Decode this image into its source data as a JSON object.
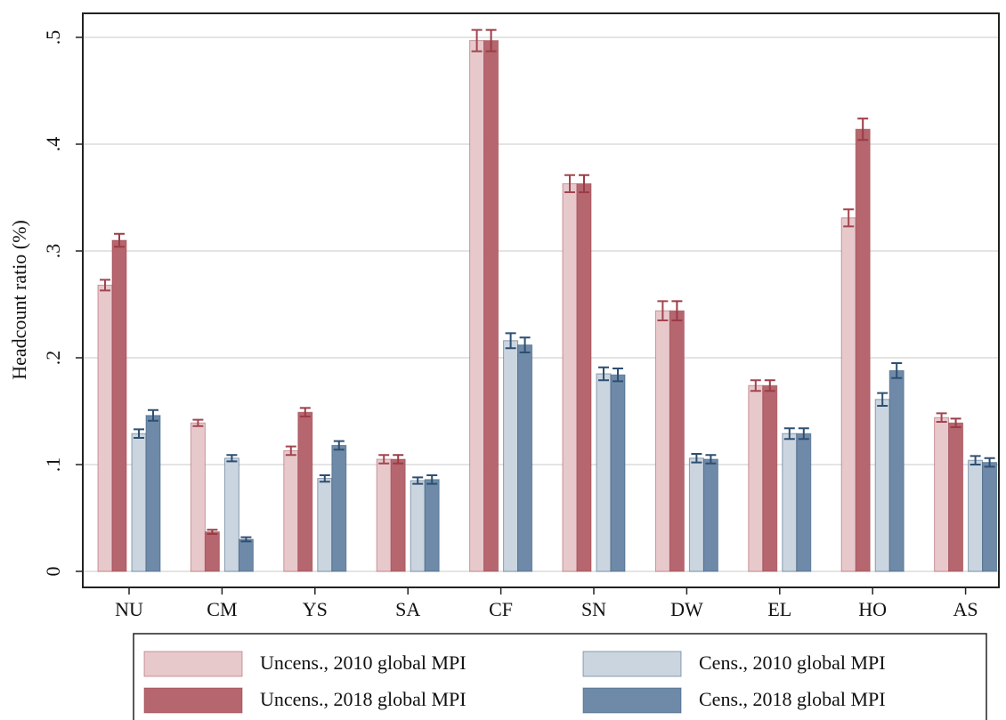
{
  "chart_data": {
    "type": "bar",
    "y_label": "Headcount ratio (%)",
    "categories": [
      "NU",
      "CM",
      "YS",
      "SA",
      "CF",
      "SN",
      "DW",
      "EL",
      "HO",
      "AS"
    ],
    "series": [
      {
        "name": "Uncens., 2010 global MPI",
        "color": "#e7c9cc",
        "error_color": "#a2454f",
        "values": [
          0.268,
          0.139,
          0.113,
          0.105,
          0.497,
          0.363,
          0.244,
          0.174,
          0.331,
          0.144
        ],
        "errors": [
          0.005,
          0.003,
          0.004,
          0.004,
          0.01,
          0.008,
          0.009,
          0.005,
          0.008,
          0.004
        ]
      },
      {
        "name": "Uncens., 2018 global MPI",
        "color": "#b5666e",
        "error_color": "#9b3c46",
        "values": [
          0.31,
          0.037,
          0.149,
          0.105,
          0.497,
          0.363,
          0.244,
          0.174,
          0.414,
          0.139
        ],
        "errors": [
          0.006,
          0.002,
          0.004,
          0.004,
          0.01,
          0.008,
          0.009,
          0.005,
          0.01,
          0.004
        ]
      },
      {
        "name": "Cens., 2010 global MPI",
        "color": "#cbd5df",
        "error_color": "#2d4f72",
        "values": [
          0.129,
          0.106,
          0.087,
          0.085,
          0.216,
          0.185,
          0.106,
          0.129,
          0.161,
          0.104
        ],
        "errors": [
          0.004,
          0.003,
          0.003,
          0.003,
          0.007,
          0.006,
          0.004,
          0.005,
          0.006,
          0.004
        ]
      },
      {
        "name": "Cens., 2018 global MPI",
        "color": "#6f8aa8",
        "error_color": "#2d4f72",
        "values": [
          0.146,
          0.03,
          0.118,
          0.086,
          0.212,
          0.184,
          0.105,
          0.129,
          0.188,
          0.102
        ],
        "errors": [
          0.005,
          0.002,
          0.004,
          0.004,
          0.007,
          0.006,
          0.004,
          0.005,
          0.007,
          0.004
        ]
      }
    ],
    "ylim": [
      -0.015,
      0.5225
    ],
    "yticks": [
      0,
      {
        "value": 0.1,
        "label": ".1"
      },
      {
        "value": 0.2,
        "label": ".2"
      },
      {
        "value": 0.3,
        "label": ".3"
      },
      {
        "value": 0.4,
        "label": ".4"
      },
      {
        "value": 0.5,
        "label": ".5"
      }
    ],
    "grid": true,
    "legend": "bottom"
  }
}
